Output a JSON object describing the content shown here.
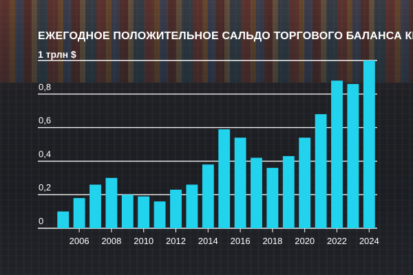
{
  "chart_data": {
    "type": "bar",
    "title": "ЕЖЕГОДНОЕ ПОЛОЖИТЕЛЬНОЕ САЛЬДО ТОРГОВОГО БАЛАНСА КИТАЯ",
    "ylabel": "1 трлн $",
    "xlabel": "",
    "categories": [
      "2005",
      "2006",
      "2007",
      "2008",
      "2009",
      "2010",
      "2011",
      "2012",
      "2013",
      "2014",
      "2015",
      "2016",
      "2017",
      "2018",
      "2019",
      "2020",
      "2021",
      "2022",
      "2023",
      "2024"
    ],
    "values": [
      0.1,
      0.18,
      0.26,
      0.3,
      0.2,
      0.19,
      0.16,
      0.23,
      0.26,
      0.38,
      0.59,
      0.54,
      0.42,
      0.36,
      0.43,
      0.54,
      0.68,
      0.88,
      0.86,
      1.0
    ],
    "ylim": [
      0,
      1.0
    ],
    "yticks": [
      {
        "value": 0,
        "label": "0"
      },
      {
        "value": 0.2,
        "label": "0,2"
      },
      {
        "value": 0.4,
        "label": "0,4"
      },
      {
        "value": 0.6,
        "label": "0,6"
      },
      {
        "value": 0.8,
        "label": "0,8"
      }
    ],
    "xtick_labels": [
      "2006",
      "2008",
      "2010",
      "2012",
      "2014",
      "2016",
      "2018",
      "2020",
      "2022",
      "2024"
    ],
    "bar_color": "#22d3ee",
    "grid": true,
    "legend": "none"
  }
}
